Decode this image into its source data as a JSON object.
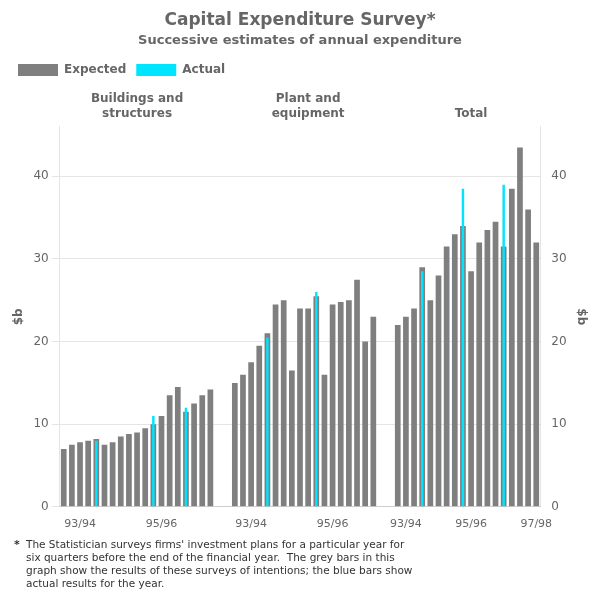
{
  "chart_data": {
    "type": "bar",
    "title": "Capital Expenditure Survey*",
    "subtitle": "Successive estimates of annual expenditure",
    "annotations": [
      "Buildings and\nstructures",
      "Plant and\nequipment",
      "Total"
    ],
    "ylabel": "$b",
    "y2label": "$b",
    "footnote_mark": "*",
    "footnote": "The Statistician surveys firms' investment plans for a particular year for\nsix quarters before the end of the financial year.  The grey bars in this\ngraph show the results of these surveys of intentions; the blue bars show\nactual results for the year.",
    "categories": [
      null,
      null,
      "93/94",
      null,
      null,
      null,
      null,
      null,
      null,
      null,
      null,
      null,
      "95/96",
      null,
      null,
      null,
      null,
      null,
      null,
      null,
      null,
      null,
      null,
      "93/94",
      null,
      null,
      null,
      null,
      null,
      null,
      null,
      null,
      null,
      "95/96",
      null,
      null,
      null,
      null,
      null,
      null,
      null,
      null,
      "93/94",
      null,
      null,
      null,
      null,
      null,
      null,
      null,
      "95/96",
      null,
      null,
      null,
      null,
      null,
      null,
      null,
      "97/98"
    ],
    "series": [
      {
        "name": "Expected",
        "color": "#7f7f7f",
        "values": [
          7.0,
          7.5,
          7.8,
          8.0,
          8.2,
          7.5,
          7.8,
          8.5,
          8.8,
          9.0,
          9.5,
          10.0,
          11.0,
          13.5,
          14.5,
          11.5,
          12.5,
          13.5,
          14.2,
          null,
          null,
          15.0,
          16.0,
          17.5,
          19.5,
          21.0,
          24.5,
          25.0,
          16.5,
          24.0,
          24.0,
          25.5,
          16.0,
          24.5,
          24.8,
          25.0,
          27.5,
          20.0,
          23.0,
          null,
          null,
          22.0,
          23.0,
          24.0,
          29.0,
          25.0,
          28.0,
          31.5,
          33.0,
          34.0,
          28.5,
          32.0,
          33.5,
          34.5,
          31.5,
          38.5,
          43.5,
          36.0,
          32.0
        ]
      },
      {
        "name": "Actual",
        "color": "#00e5ff",
        "values": [
          null,
          null,
          null,
          null,
          8.0,
          null,
          null,
          null,
          null,
          null,
          null,
          11.0,
          null,
          null,
          null,
          12.0,
          null,
          null,
          null,
          null,
          null,
          null,
          null,
          null,
          null,
          20.5,
          null,
          null,
          null,
          null,
          null,
          26.0,
          null,
          null,
          null,
          null,
          null,
          null,
          null,
          null,
          null,
          null,
          null,
          null,
          28.5,
          null,
          null,
          null,
          null,
          38.5,
          null,
          null,
          null,
          null,
          39.0,
          null,
          null,
          null,
          null
        ]
      }
    ],
    "ylim": [
      0,
      46
    ],
    "yticks": [
      0,
      10,
      20,
      30,
      40
    ],
    "y2lim": [
      0,
      46
    ],
    "y2ticks": [
      0,
      10,
      20,
      30,
      40
    ],
    "grid": true,
    "legend": "upper left"
  }
}
